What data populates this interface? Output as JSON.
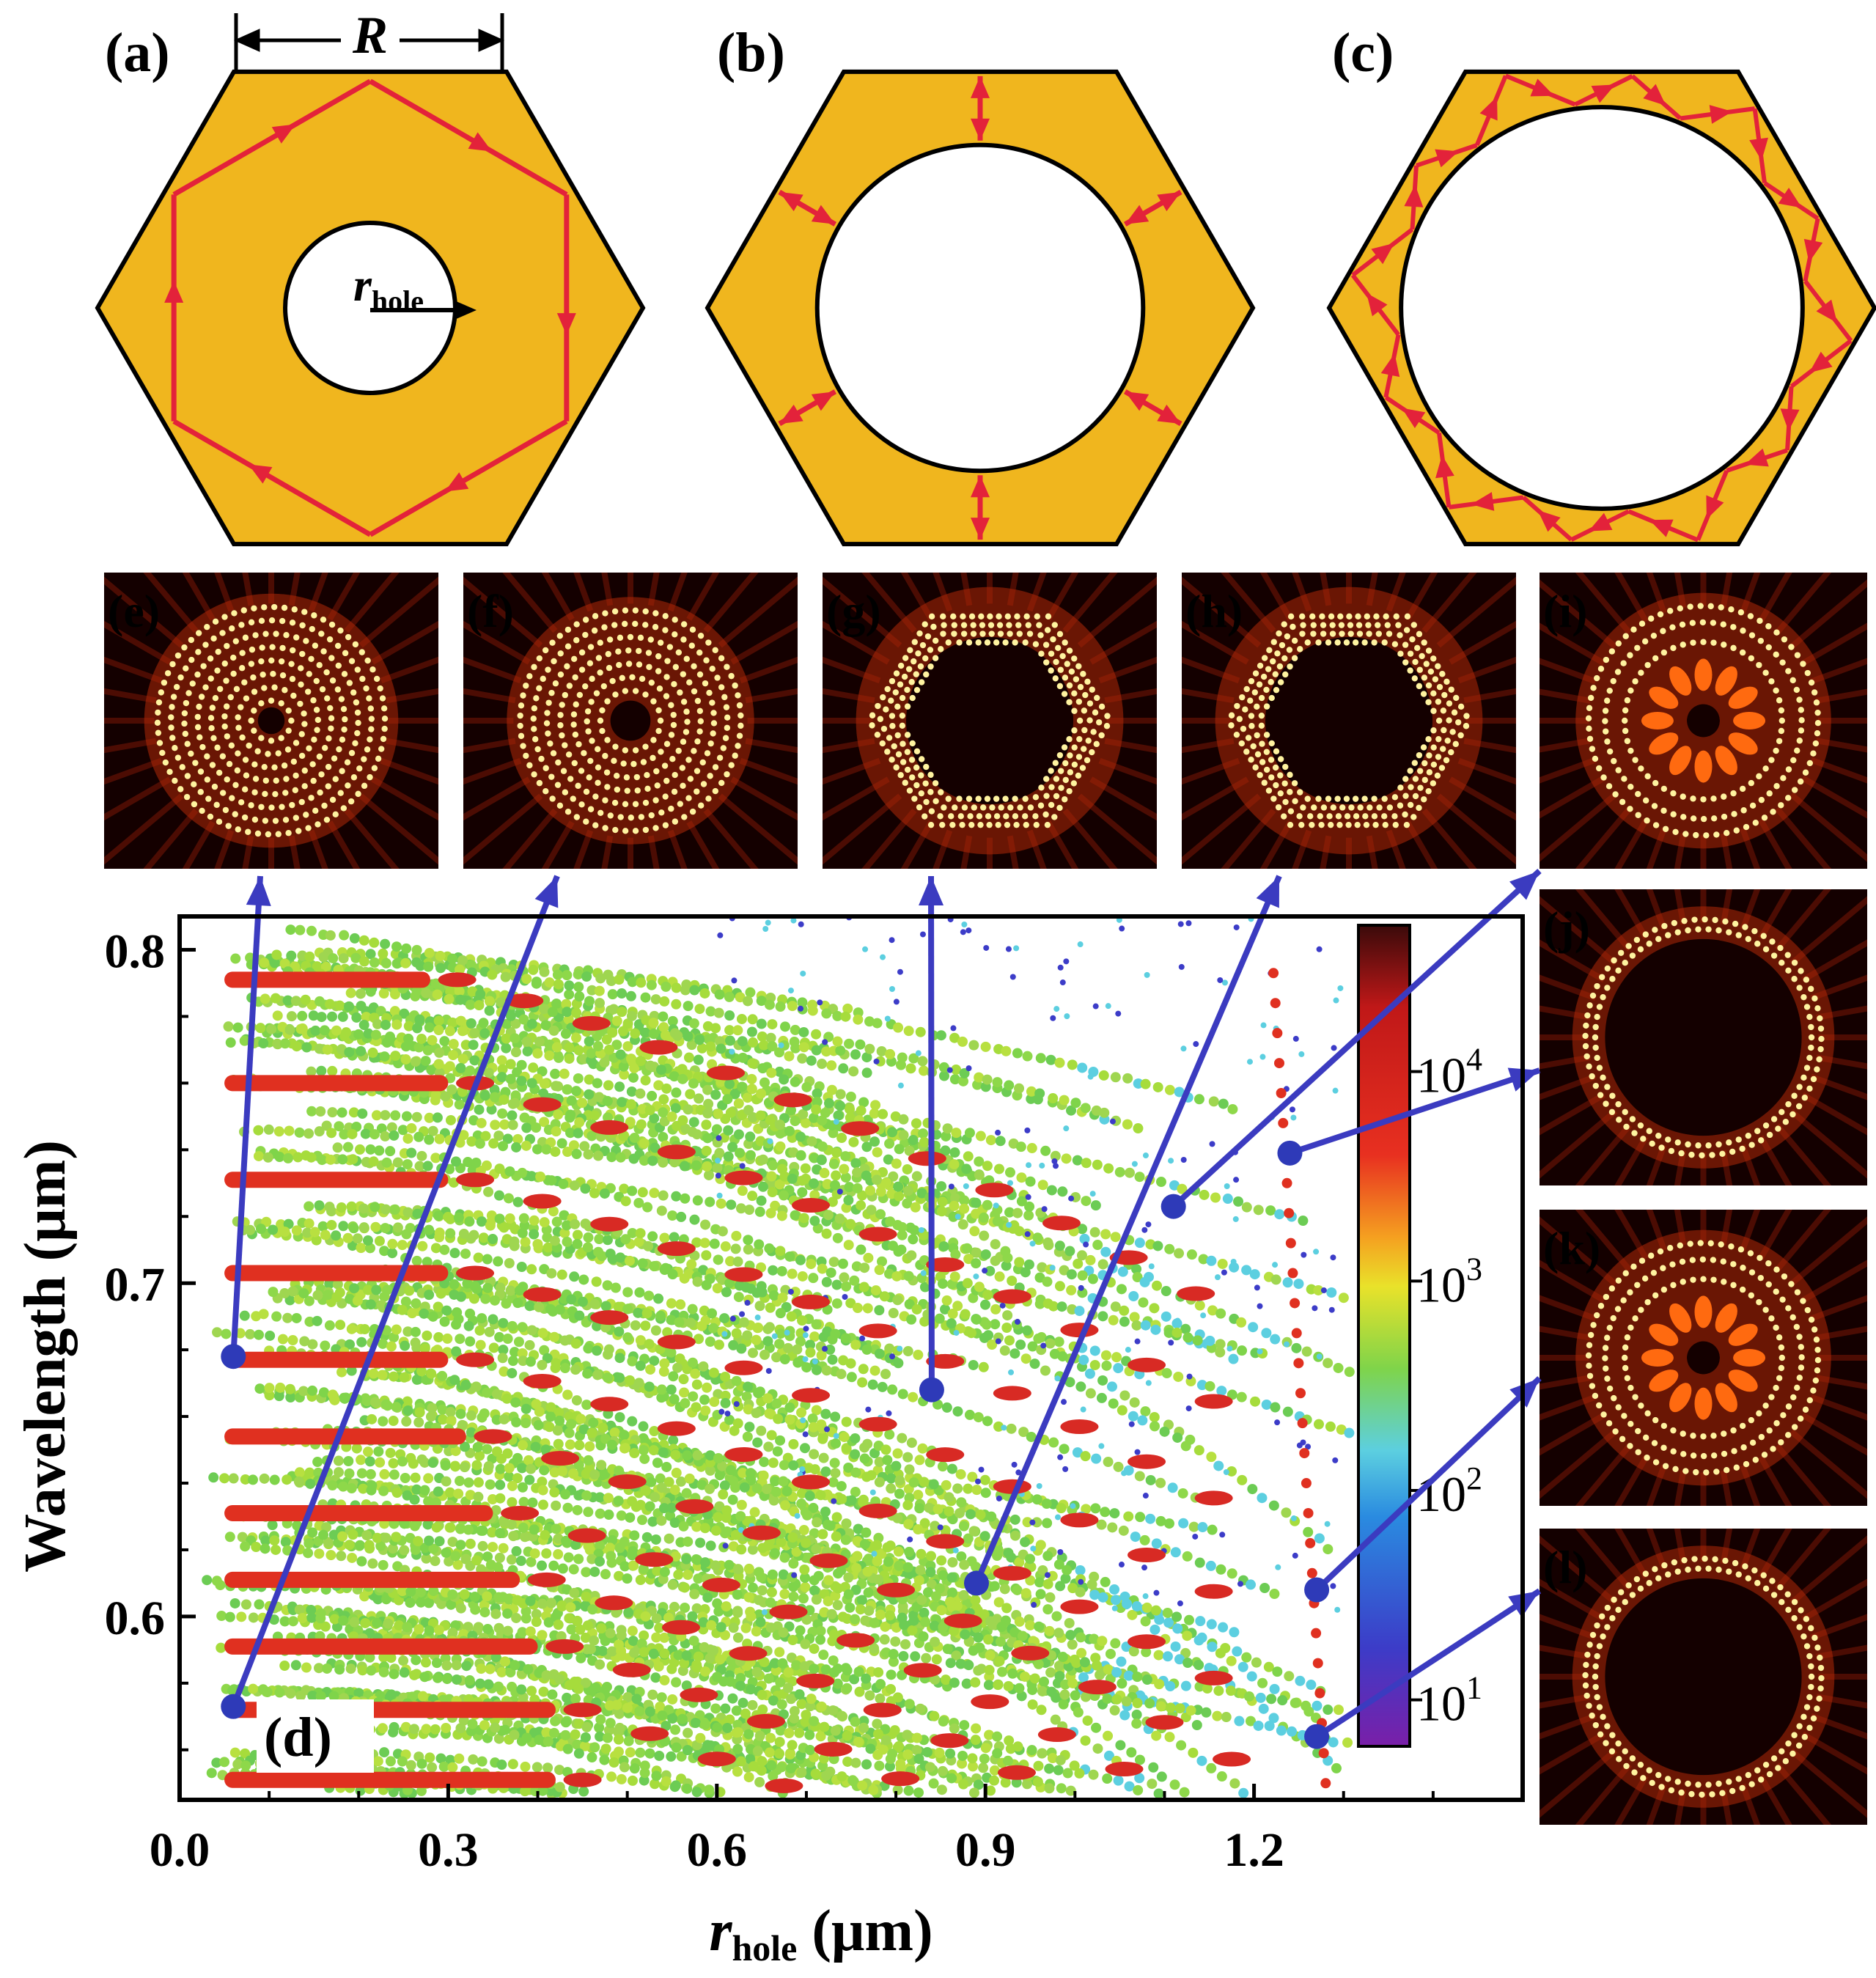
{
  "panels": {
    "a": "(a)",
    "b": "(b)",
    "c": "(c)",
    "d": "(d)",
    "e": "(e)",
    "f": "(f)",
    "g": "(g)",
    "h": "(h)",
    "i": "(i)",
    "j": "(j)",
    "k": "(k)",
    "l": "(l)"
  },
  "schematic": {
    "r_label": "R",
    "rhole_main": "r",
    "rhole_sub": "hole",
    "fill_color": "#f0b61e",
    "ray_color": "#e3223a",
    "hole_fraction": [
      0.36,
      0.69,
      0.85
    ]
  },
  "mode_colors": {
    "background": "#140000",
    "core": "#fff3a0",
    "glow": "#ff5a10"
  },
  "chart_data": {
    "type": "scatter",
    "title": "",
    "xlabel_main": "r",
    "xlabel_sub": "hole",
    "xlabel_unit": " (μm)",
    "ylabel": "Wavelength (μm)",
    "xlim": [
      0.0,
      1.5
    ],
    "ylim": [
      0.545,
      0.81
    ],
    "xticks": [
      0.0,
      0.3,
      0.6,
      0.9,
      1.2
    ],
    "xtick_labels": [
      "0.0",
      "0.3",
      "0.6",
      "0.9",
      "1.2"
    ],
    "yticks": [
      0.6,
      0.7,
      0.8
    ],
    "ytick_labels": [
      "0.6",
      "0.7",
      "0.8"
    ],
    "colorbar": {
      "scale": "log",
      "range": [
        6,
        50000
      ],
      "ticks": [
        10,
        100,
        1000,
        10000
      ],
      "tick_base": "10",
      "tick_exponents": [
        "1",
        "2",
        "3",
        "4"
      ],
      "colors": [
        "#7a1fa8",
        "#3c3cc8",
        "#2a8be0",
        "#5ccfe0",
        "#7fd44a",
        "#e9e22a",
        "#f5a020",
        "#e83020",
        "#c01818",
        "#3a0a0a"
      ]
    },
    "high_q_modes": [
      {
        "lambda": 0.551,
        "x_end": 0.42
      },
      {
        "lambda": 0.572,
        "x_end": 0.42
      },
      {
        "lambda": 0.591,
        "x_end": 0.4
      },
      {
        "lambda": 0.611,
        "x_end": 0.38
      },
      {
        "lambda": 0.631,
        "x_end": 0.35
      },
      {
        "lambda": 0.654,
        "x_end": 0.32
      },
      {
        "lambda": 0.677,
        "x_end": 0.3
      },
      {
        "lambda": 0.703,
        "x_end": 0.3
      },
      {
        "lambda": 0.731,
        "x_end": 0.3
      },
      {
        "lambda": 0.76,
        "x_end": 0.3
      },
      {
        "lambda": 0.791,
        "x_end": 0.28
      }
    ],
    "annotated_points": [
      {
        "x": 0.06,
        "y": 0.678,
        "target": "e"
      },
      {
        "x": 0.06,
        "y": 0.573,
        "target": "f"
      },
      {
        "x": 0.84,
        "y": 0.668,
        "target": "g"
      },
      {
        "x": 0.89,
        "y": 0.61,
        "target": "h"
      },
      {
        "x": 1.11,
        "y": 0.723,
        "target": "i"
      },
      {
        "x": 1.24,
        "y": 0.739,
        "target": "j"
      },
      {
        "x": 1.27,
        "y": 0.608,
        "target": "k"
      },
      {
        "x": 1.27,
        "y": 0.564,
        "target": "l"
      }
    ],
    "arrow_color": "#3b3bc0",
    "point_color": "#2e3ab8"
  }
}
